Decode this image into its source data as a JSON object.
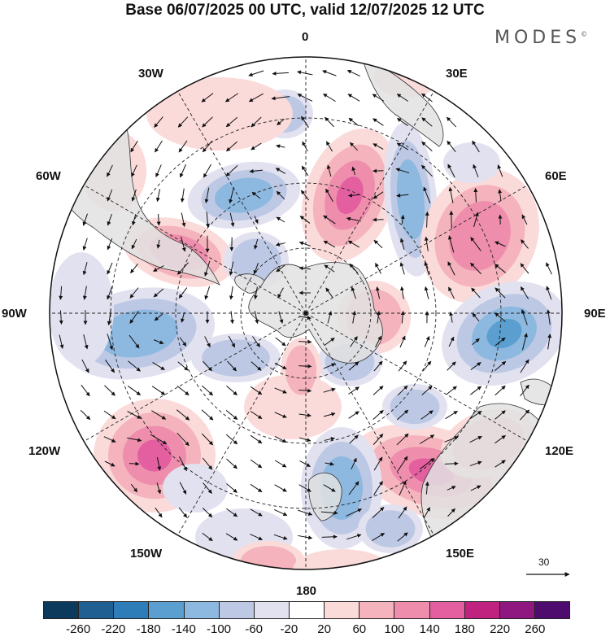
{
  "title": "Base 06/07/2025 00 UTC, valid 12/07/2025 12 UTC",
  "brand": "MODES",
  "brand_mark": "©",
  "longitude_labels": {
    "n0": "0",
    "n30e": "30E",
    "n60e": "60E",
    "n90e": "90E",
    "n120e": "120E",
    "n150e": "150E",
    "n180": "180",
    "n150w": "150W",
    "n120w": "120W",
    "n90w": "90W",
    "n60w": "60W",
    "n30w": "30W"
  },
  "reference_vector": "30",
  "colorbar": {
    "colors": [
      "#0c3a5c",
      "#1f5f92",
      "#2f7db8",
      "#5a9fd0",
      "#8db8df",
      "#bcc8e4",
      "#e1e1f0",
      "#ffffff",
      "#fbdada",
      "#f4b3bd",
      "#ee8eac",
      "#e35fa0",
      "#c0237f",
      "#8e1780",
      "#4e0d6e"
    ],
    "ticks": [
      "-260",
      "-220",
      "-180",
      "-140",
      "-100",
      "-60",
      "-20",
      "20",
      "60",
      "100",
      "140",
      "180",
      "220",
      "260"
    ]
  },
  "anomaly_colors": {
    "pos1": "#fbdada",
    "pos2": "#f4b3bd",
    "pos3": "#ee8eac",
    "pos4": "#e35fa0",
    "neg1": "#e1e1f0",
    "neg2": "#bcc8e4",
    "neg3": "#8db8df",
    "neg4": "#5a9fd0"
  },
  "land_color": "#e2e2e2"
}
